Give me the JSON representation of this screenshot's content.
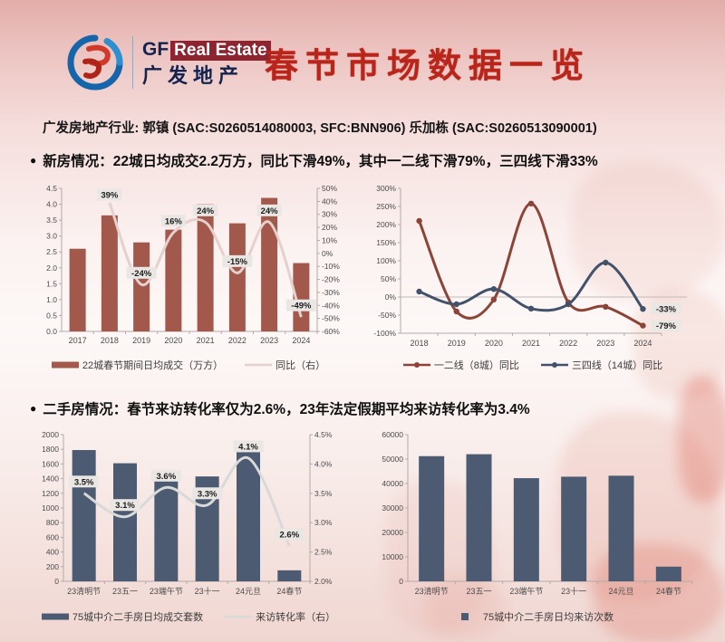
{
  "header": {
    "logo": {
      "gf": "GF",
      "real_estate": "Real Estate",
      "cn": "广发地产"
    },
    "title": "春节市场数据一览"
  },
  "analyst_line": "广发房地产行业: 郭镇 (SAC:S0260514080003, SFC:BNN906) 乐加栋 (SAC:S0260513090001)",
  "bullets": [
    {
      "marker": "●",
      "text": "新房情况：22城日均成交2.2万方，同比下滑49%，其中一二线下滑79%，三四线下滑33%"
    },
    {
      "marker": "●",
      "text": "二手房情况：春节来访转化率仅为2.6%，23年法定假期平均来访转化率为3.4%"
    }
  ],
  "colors": {
    "title_red": "#b9251a",
    "brick_bar": "#a2584b",
    "pale_line": "#e5d0cd",
    "slate_bar": "#4c5b71",
    "tier12_line": "#8c4437",
    "tier34_line": "#42526b",
    "grey_line": "#d9d9d9",
    "label_box": "#e9e6e4"
  },
  "chart_data": [
    {
      "id": "new-home-daily-sales",
      "type": "bar+line",
      "title": "",
      "categories": [
        "2017",
        "2018",
        "2019",
        "2020",
        "2021",
        "2022",
        "2023",
        "2024"
      ],
      "bar_series": {
        "name": "22城春节期间日均成交（万方）",
        "color": "#a2584b",
        "values": [
          2.6,
          3.65,
          2.8,
          3.2,
          4.0,
          3.4,
          4.2,
          2.15
        ]
      },
      "line_series": {
        "name": "同比（右）",
        "color": "#e5d0cd",
        "axis": "right",
        "values": [
          null,
          39,
          -24,
          16,
          24,
          -15,
          24,
          -49
        ],
        "labels": [
          null,
          "39%",
          "-24%",
          "16%",
          "24%",
          "-15%",
          "24%",
          "-49%"
        ]
      },
      "left_axis": {
        "min": 0,
        "max": 4.5,
        "step": 0.5,
        "decimals": 1
      },
      "right_axis": {
        "min": -60,
        "max": 50,
        "step": 10,
        "suffix": "%",
        "decimals": 0
      },
      "legend_position": "bottom",
      "grid": false
    },
    {
      "id": "new-home-yoy-by-tier",
      "type": "lines",
      "title": "",
      "categories": [
        "2018",
        "2019",
        "2020",
        "2021",
        "2022",
        "2023",
        "2024"
      ],
      "series": [
        {
          "name": "一二线（8城）同比",
          "color": "#8c4437",
          "values": [
            210,
            -40,
            -7,
            258,
            -15,
            -27,
            -79
          ]
        },
        {
          "name": "三四线（14城）同比",
          "color": "#42526b",
          "values": [
            15,
            -20,
            22,
            -32,
            -20,
            95,
            -33
          ]
        }
      ],
      "y_axis": {
        "min": -100,
        "max": 300,
        "step": 50,
        "suffix": "%",
        "decimals": 0
      },
      "end_labels": [
        {
          "series": 1,
          "text": "-33%"
        },
        {
          "series": 0,
          "text": "-79%"
        }
      ],
      "legend_position": "bottom",
      "grid": false
    },
    {
      "id": "second-hand-sales-vs-conversion",
      "type": "bar+line",
      "title": "",
      "categories": [
        "23清明节",
        "23五一",
        "23端午节",
        "23十一",
        "24元旦",
        "24春节"
      ],
      "bar_series": {
        "name": "75城中介二手房日均成交套数",
        "color": "#4c5b71",
        "values": [
          1790,
          1610,
          1400,
          1430,
          1780,
          150
        ]
      },
      "line_series": {
        "name": "来访转化率（右）",
        "color": "#d9d9d9",
        "axis": "right",
        "values": [
          3.5,
          3.1,
          3.6,
          3.3,
          4.1,
          2.6
        ],
        "labels": [
          "3.5%",
          "3.1%",
          "3.6%",
          "3.3%",
          "4.1%",
          "2.6%"
        ]
      },
      "left_axis": {
        "min": 0,
        "max": 2000,
        "step": 200,
        "decimals": 0
      },
      "right_axis": {
        "min": 2.0,
        "max": 4.5,
        "step": 0.5,
        "suffix": "%",
        "decimals": 1
      },
      "legend_position": "bottom",
      "grid": false
    },
    {
      "id": "second-hand-daily-visits",
      "type": "bar",
      "title": "",
      "categories": [
        "23清明节",
        "23五一",
        "23端午节",
        "23十一",
        "24元旦",
        "24春节"
      ],
      "bar_series": {
        "name": "75城中介二手房日均来访次数",
        "color": "#4c5b71",
        "values": [
          51200,
          52000,
          42200,
          42800,
          43200,
          6000
        ]
      },
      "left_axis": {
        "min": 0,
        "max": 60000,
        "step": 10000,
        "decimals": 0
      },
      "legend_position": "bottom",
      "grid": false
    }
  ]
}
